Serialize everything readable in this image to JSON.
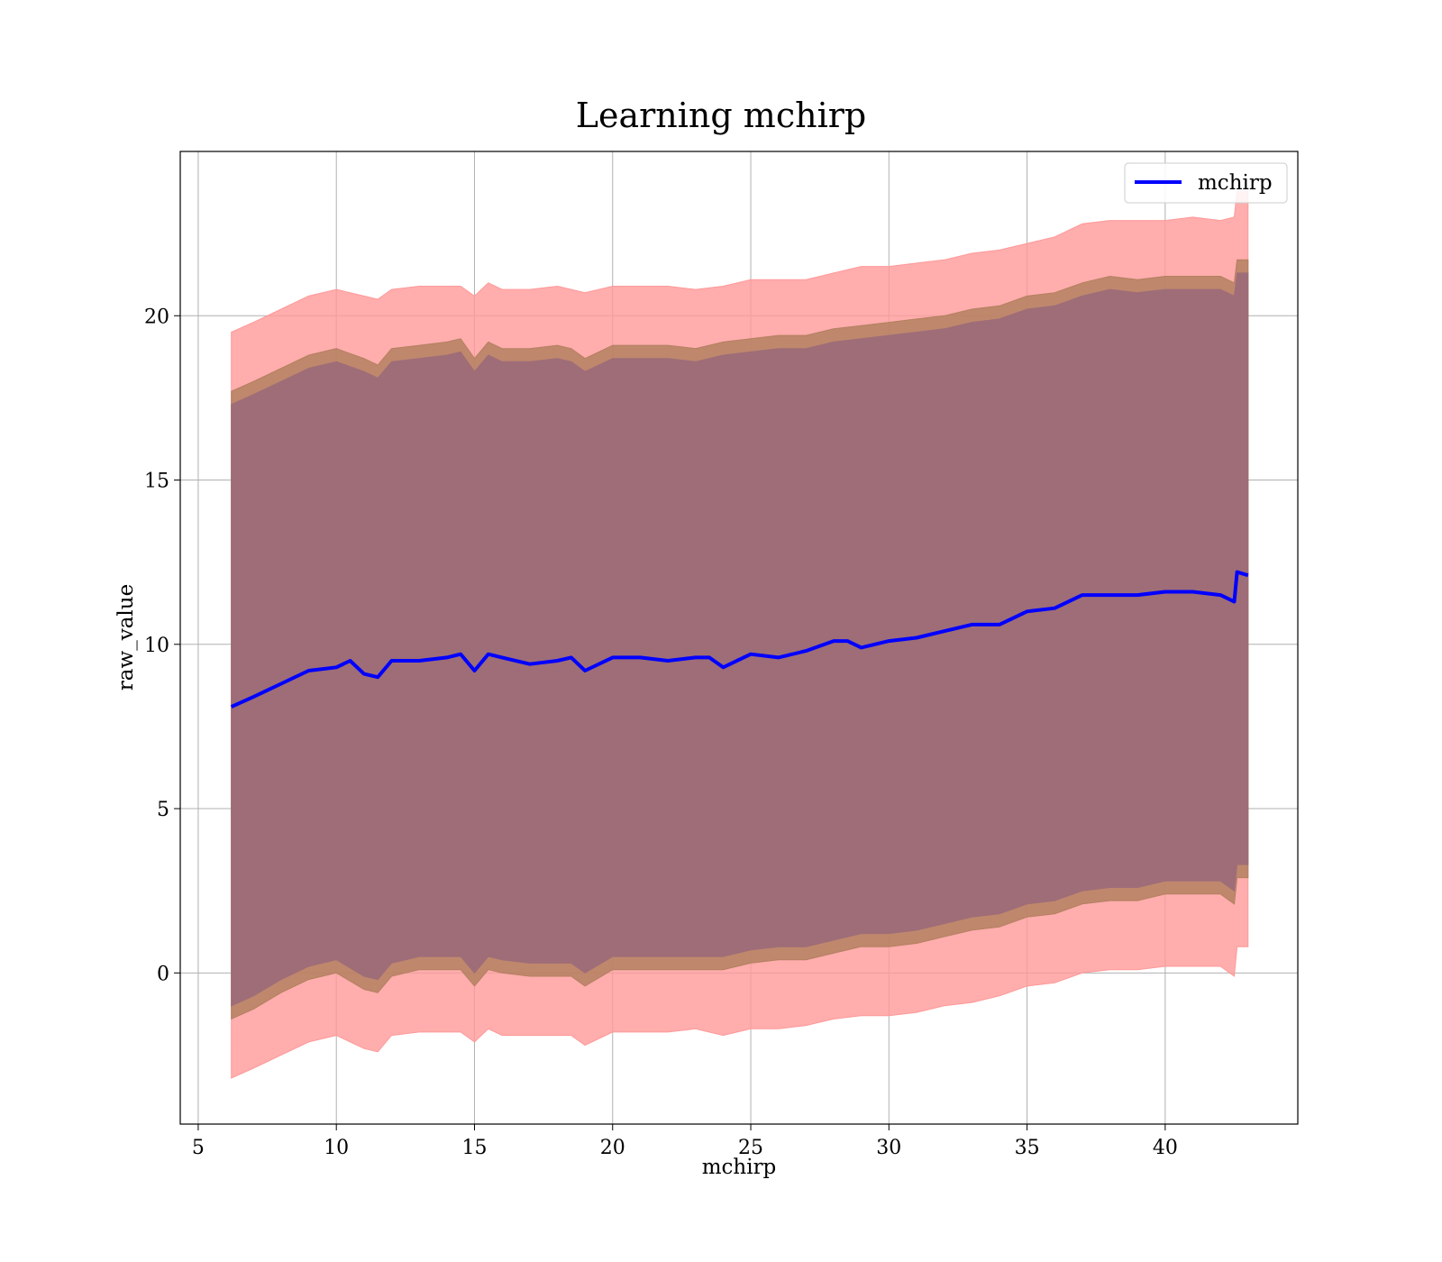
{
  "chart_data": {
    "type": "area",
    "title": "Learning mchirp",
    "xlabel": "mchirp",
    "ylabel": "raw_value",
    "xlim": [
      4.35,
      44.8
    ],
    "ylim": [
      -4.6,
      25.0
    ],
    "xticks": [
      5,
      10,
      15,
      20,
      25,
      30,
      35,
      40
    ],
    "yticks": [
      0,
      5,
      10,
      15,
      20
    ],
    "grid": true,
    "legend": {
      "position": "top-right",
      "entries": [
        "mchirp"
      ]
    },
    "colors": {
      "line": "#0000ff",
      "outer_band": "#ff9999",
      "mid_band": "#b48060",
      "inner_band": "#9e6d78"
    },
    "series": [
      {
        "name": "mchirp",
        "x": [
          6.2,
          7.0,
          8.0,
          9.0,
          10.0,
          10.5,
          11.0,
          11.5,
          12.0,
          13.0,
          14.0,
          14.5,
          15.0,
          15.5,
          16.0,
          17.0,
          18.0,
          18.5,
          19.0,
          20.0,
          21.0,
          22.0,
          23.0,
          23.5,
          24.0,
          25.0,
          26.0,
          27.0,
          28.0,
          28.5,
          29.0,
          30.0,
          31.0,
          32.0,
          33.0,
          34.0,
          35.0,
          36.0,
          37.0,
          38.0,
          39.0,
          40.0,
          41.0,
          42.0,
          42.5,
          42.6,
          43.0
        ],
        "y": [
          8.1,
          8.4,
          8.8,
          9.2,
          9.3,
          9.5,
          9.1,
          9.0,
          9.5,
          9.5,
          9.6,
          9.7,
          9.2,
          9.7,
          9.6,
          9.4,
          9.5,
          9.6,
          9.2,
          9.6,
          9.6,
          9.5,
          9.6,
          9.6,
          9.3,
          9.7,
          9.6,
          9.8,
          10.1,
          10.1,
          9.9,
          10.1,
          10.2,
          10.4,
          10.6,
          10.6,
          11.0,
          11.1,
          11.5,
          11.5,
          11.5,
          11.6,
          11.6,
          11.5,
          11.3,
          12.2,
          12.1
        ]
      }
    ],
    "bands": [
      {
        "name": "outer",
        "x": [
          6.2,
          7.0,
          8.0,
          9.0,
          10.0,
          11.0,
          11.5,
          12.0,
          13.0,
          14.0,
          14.5,
          15.0,
          15.5,
          16.0,
          17.0,
          18.0,
          18.5,
          19.0,
          20.0,
          21.0,
          22.0,
          23.0,
          24.0,
          25.0,
          26.0,
          27.0,
          28.0,
          29.0,
          30.0,
          31.0,
          32.0,
          33.0,
          34.0,
          35.0,
          36.0,
          37.0,
          38.0,
          39.0,
          40.0,
          41.0,
          42.0,
          42.5,
          42.6,
          43.0
        ],
        "upper": [
          19.5,
          19.8,
          20.2,
          20.6,
          20.8,
          20.6,
          20.5,
          20.8,
          20.9,
          20.9,
          20.9,
          20.6,
          21.0,
          20.8,
          20.8,
          20.9,
          20.8,
          20.7,
          20.9,
          20.9,
          20.9,
          20.8,
          20.9,
          21.1,
          21.1,
          21.1,
          21.3,
          21.5,
          21.5,
          21.6,
          21.7,
          21.9,
          22.0,
          22.2,
          22.4,
          22.8,
          22.9,
          22.9,
          22.9,
          23.0,
          22.9,
          23.0,
          23.8,
          23.8
        ],
        "lower": [
          -3.2,
          -2.9,
          -2.5,
          -2.1,
          -1.9,
          -2.3,
          -2.4,
          -1.9,
          -1.8,
          -1.8,
          -1.8,
          -2.1,
          -1.7,
          -1.9,
          -1.9,
          -1.9,
          -1.9,
          -2.2,
          -1.8,
          -1.8,
          -1.8,
          -1.7,
          -1.9,
          -1.7,
          -1.7,
          -1.6,
          -1.4,
          -1.3,
          -1.3,
          -1.2,
          -1.0,
          -0.9,
          -0.7,
          -0.4,
          -0.3,
          0.0,
          0.1,
          0.1,
          0.2,
          0.2,
          0.2,
          -0.1,
          0.8,
          0.8
        ]
      },
      {
        "name": "mid",
        "x": [
          6.2,
          7.0,
          8.0,
          9.0,
          10.0,
          11.0,
          11.5,
          12.0,
          13.0,
          14.0,
          14.5,
          15.0,
          15.5,
          16.0,
          17.0,
          18.0,
          18.5,
          19.0,
          20.0,
          21.0,
          22.0,
          23.0,
          24.0,
          25.0,
          26.0,
          27.0,
          28.0,
          29.0,
          30.0,
          31.0,
          32.0,
          33.0,
          34.0,
          35.0,
          36.0,
          37.0,
          38.0,
          39.0,
          40.0,
          41.0,
          42.0,
          42.5,
          42.6,
          43.0
        ],
        "upper": [
          17.7,
          18.0,
          18.4,
          18.8,
          19.0,
          18.7,
          18.5,
          19.0,
          19.1,
          19.2,
          19.3,
          18.7,
          19.2,
          19.0,
          19.0,
          19.1,
          19.0,
          18.7,
          19.1,
          19.1,
          19.1,
          19.0,
          19.2,
          19.3,
          19.4,
          19.4,
          19.6,
          19.7,
          19.8,
          19.9,
          20.0,
          20.2,
          20.3,
          20.6,
          20.7,
          21.0,
          21.2,
          21.1,
          21.2,
          21.2,
          21.2,
          21.0,
          21.7,
          21.7
        ],
        "lower": [
          -1.4,
          -1.1,
          -0.6,
          -0.2,
          0.0,
          -0.5,
          -0.6,
          -0.1,
          0.1,
          0.1,
          0.1,
          -0.4,
          0.1,
          0.0,
          -0.1,
          -0.1,
          -0.1,
          -0.4,
          0.1,
          0.1,
          0.1,
          0.1,
          0.1,
          0.3,
          0.4,
          0.4,
          0.6,
          0.8,
          0.8,
          0.9,
          1.1,
          1.3,
          1.4,
          1.7,
          1.8,
          2.1,
          2.2,
          2.2,
          2.4,
          2.4,
          2.4,
          2.1,
          2.9,
          2.9
        ]
      },
      {
        "name": "inner",
        "x": [
          6.2,
          7.0,
          8.0,
          9.0,
          10.0,
          11.0,
          11.5,
          12.0,
          13.0,
          14.0,
          14.5,
          15.0,
          15.5,
          16.0,
          17.0,
          18.0,
          18.5,
          19.0,
          20.0,
          21.0,
          22.0,
          23.0,
          24.0,
          25.0,
          26.0,
          27.0,
          28.0,
          29.0,
          30.0,
          31.0,
          32.0,
          33.0,
          34.0,
          35.0,
          36.0,
          37.0,
          38.0,
          39.0,
          40.0,
          41.0,
          42.0,
          42.5,
          42.6,
          43.0
        ],
        "upper": [
          17.3,
          17.6,
          18.0,
          18.4,
          18.6,
          18.3,
          18.1,
          18.6,
          18.7,
          18.8,
          18.9,
          18.3,
          18.8,
          18.6,
          18.6,
          18.7,
          18.6,
          18.3,
          18.7,
          18.7,
          18.7,
          18.6,
          18.8,
          18.9,
          19.0,
          19.0,
          19.2,
          19.3,
          19.4,
          19.5,
          19.6,
          19.8,
          19.9,
          20.2,
          20.3,
          20.6,
          20.8,
          20.7,
          20.8,
          20.8,
          20.8,
          20.6,
          21.3,
          21.3
        ],
        "lower": [
          -1.0,
          -0.7,
          -0.2,
          0.2,
          0.4,
          -0.1,
          -0.2,
          0.3,
          0.5,
          0.5,
          0.5,
          0.0,
          0.5,
          0.4,
          0.3,
          0.3,
          0.3,
          0.0,
          0.5,
          0.5,
          0.5,
          0.5,
          0.5,
          0.7,
          0.8,
          0.8,
          1.0,
          1.2,
          1.2,
          1.3,
          1.5,
          1.7,
          1.8,
          2.1,
          2.2,
          2.5,
          2.6,
          2.6,
          2.8,
          2.8,
          2.8,
          2.5,
          3.3,
          3.3
        ]
      }
    ]
  }
}
